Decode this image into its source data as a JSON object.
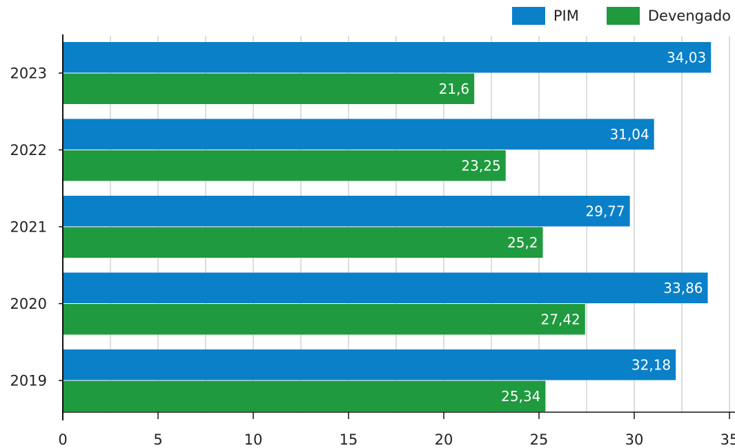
{
  "chart_data": {
    "type": "bar",
    "orientation": "horizontal",
    "categories": [
      "2023",
      "2022",
      "2021",
      "2020",
      "2019"
    ],
    "series": [
      {
        "name": "PIM",
        "color": "#0a80c8",
        "values": [
          34.03,
          31.04,
          29.77,
          33.86,
          32.18
        ],
        "labels": [
          "34,03",
          "31,04",
          "29,77",
          "33,86",
          "32,18"
        ]
      },
      {
        "name": "Devengado",
        "color": "#1f9a3f",
        "values": [
          21.6,
          23.25,
          25.2,
          27.42,
          25.34
        ],
        "labels": [
          "21,6",
          "23,25",
          "25,2",
          "27,42",
          "25,34"
        ]
      }
    ],
    "xlim": [
      0,
      35
    ],
    "xticks": [
      "0",
      "5",
      "10",
      "15",
      "20",
      "25",
      "30",
      "35"
    ],
    "xtick_step": 2.5,
    "grid": true,
    "legend_position": "top-right"
  }
}
